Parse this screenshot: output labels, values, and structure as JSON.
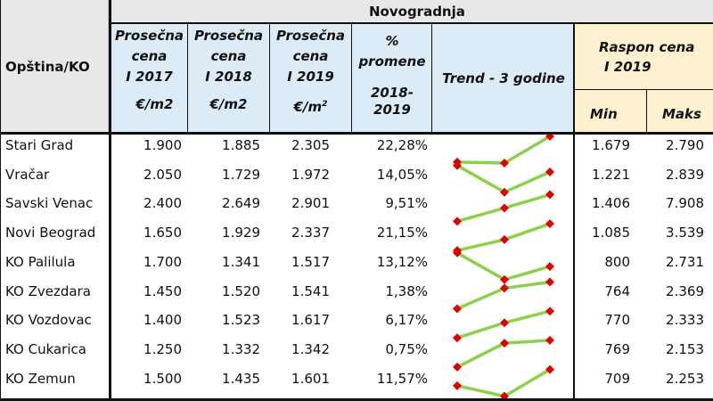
{
  "header": {
    "region_label": "Opština/KO",
    "group_title": "Novogradnja",
    "columns": [
      {
        "line1": "Prosečna",
        "line2": "cena",
        "line3": "I 2017",
        "unit": "€/m2"
      },
      {
        "line1": "Prosečna",
        "line2": "cena",
        "line3": "I 2018",
        "unit": "€/m2"
      },
      {
        "line1": "Prosečna",
        "line2": "cena",
        "line3": "I 2019",
        "unit": "€/m",
        "unit_sup": "2"
      }
    ],
    "pct": {
      "line1": "%",
      "line2": "promene",
      "line3": "2018-",
      "line4": "2019"
    },
    "trend": "Trend - 3 godine",
    "range": {
      "line1": "Raspon cena",
      "line2": "I 2019",
      "min": "Min",
      "max": "Maks"
    }
  },
  "rows": [
    {
      "name": "Stari Grad",
      "p2017": "1.900",
      "p2018": "1.885",
      "p2019": "2.305",
      "pct": "22,28%",
      "min": "1.679",
      "max": "2.790"
    },
    {
      "name": "Vračar",
      "p2017": "2.050",
      "p2018": "1.729",
      "p2019": "1.972",
      "pct": "14,05%",
      "min": "1.221",
      "max": "2.839"
    },
    {
      "name": "Savski Venac",
      "p2017": "2.400",
      "p2018": "2.649",
      "p2019": "2.901",
      "pct": "9,51%",
      "min": "1.406",
      "max": "7.908"
    },
    {
      "name": "Novi Beograd",
      "p2017": "1.650",
      "p2018": "1.929",
      "p2019": "2.337",
      "pct": "21,15%",
      "min": "1.085",
      "max": "3.539"
    },
    {
      "name": "KO Palilula",
      "p2017": "1.700",
      "p2018": "1.341",
      "p2019": "1.517",
      "pct": "13,12%",
      "min": "800",
      "max": "2.731"
    },
    {
      "name": "KO Zvezdara",
      "p2017": "1.450",
      "p2018": "1.520",
      "p2019": "1.541",
      "pct": "1,38%",
      "min": "764",
      "max": "2.369"
    },
    {
      "name": "KO Vozdovac",
      "p2017": "1.400",
      "p2018": "1.523",
      "p2019": "1.617",
      "pct": "6,17%",
      "min": "770",
      "max": "2.333"
    },
    {
      "name": "KO Cukarica",
      "p2017": "1.250",
      "p2018": "1.332",
      "p2019": "1.342",
      "pct": "0,75%",
      "min": "769",
      "max": "2.153"
    },
    {
      "name": "KO Zemun",
      "p2017": "1.500",
      "p2018": "1.435",
      "p2019": "1.601",
      "pct": "11,57%",
      "min": "709",
      "max": "2.253"
    }
  ],
  "sparkline": {
    "line_color": "#8cd14a",
    "marker_color": "#e00000"
  }
}
